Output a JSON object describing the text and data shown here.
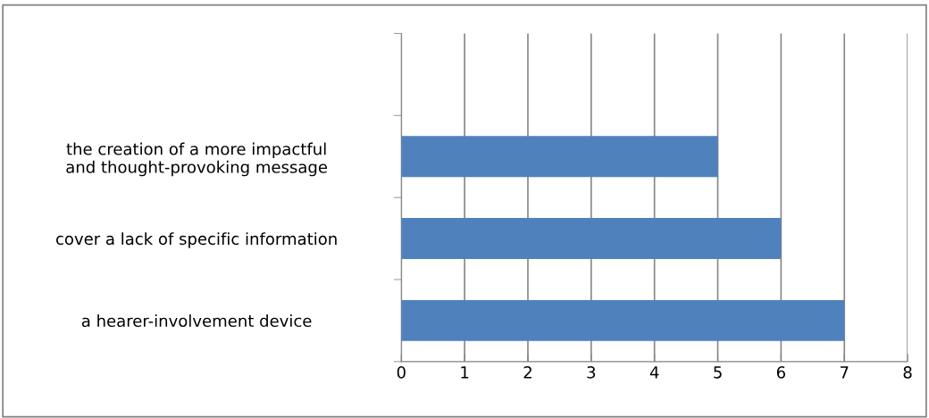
{
  "chart_data": {
    "type": "bar",
    "orientation": "horizontal",
    "categories": [
      null,
      "the creation of a more impactful and thought-provoking message",
      "cover a lack of specific information",
      "a hearer-involvement device"
    ],
    "series": [
      {
        "color": "#4f81bd",
        "values": [
          null,
          5,
          6,
          7
        ]
      }
    ],
    "xlim": [
      0,
      8
    ],
    "xticks": [
      0,
      1,
      2,
      3,
      4,
      5,
      6,
      7,
      8
    ],
    "grid": "x",
    "legend": false
  }
}
